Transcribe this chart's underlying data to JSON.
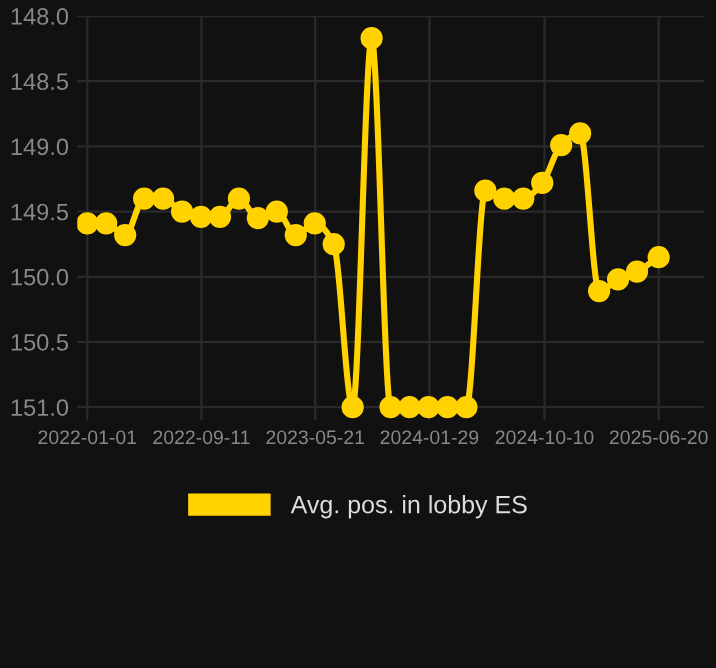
{
  "chart_data": {
    "type": "line",
    "x": [
      "2022-01-01",
      "2022-02-12",
      "2022-03-26",
      "2022-05-07",
      "2022-06-18",
      "2022-07-30",
      "2022-09-10",
      "2022-10-22",
      "2022-12-03",
      "2023-01-14",
      "2023-02-25",
      "2023-04-08",
      "2023-05-20",
      "2023-07-01",
      "2023-08-12",
      "2023-09-23",
      "2023-11-04",
      "2023-12-16",
      "2024-01-27",
      "2024-03-09",
      "2024-04-20",
      "2024-06-01",
      "2024-07-13",
      "2024-08-24",
      "2024-10-05",
      "2024-11-16",
      "2024-12-28",
      "2025-02-08",
      "2025-03-22",
      "2025-05-03",
      "2025-06-20"
    ],
    "series": [
      {
        "name": "Avg. pos. in lobby ES",
        "color": "#ffd200",
        "values": [
          149.59,
          149.59,
          149.68,
          149.4,
          149.4,
          149.5,
          149.54,
          149.54,
          149.4,
          149.55,
          149.5,
          149.68,
          149.59,
          149.75,
          151.0,
          148.17,
          151.0,
          151.0,
          151.0,
          151.0,
          151.0,
          149.34,
          149.4,
          149.4,
          149.28,
          148.99,
          148.9,
          150.11,
          150.02,
          149.96,
          149.85
        ]
      }
    ],
    "ylim": [
      151.1,
      148.0
    ],
    "yticks": [
      {
        "value": 148.0,
        "label": "148.0"
      },
      {
        "value": 148.5,
        "label": "148.5"
      },
      {
        "value": 149.0,
        "label": "149.0"
      },
      {
        "value": 149.5,
        "label": "149.5"
      },
      {
        "value": 150.0,
        "label": "150.0"
      },
      {
        "value": 150.5,
        "label": "150.5"
      },
      {
        "value": 151.0,
        "label": "151.0"
      }
    ],
    "xlim": [
      "2021-12-10",
      "2025-09-28"
    ],
    "xticks": [
      "2022-01-01",
      "2022-09-11",
      "2023-05-21",
      "2024-01-29",
      "2024-10-10",
      "2025-06-20"
    ],
    "grid": true,
    "legend": "bottom",
    "marker": "circle",
    "line_style": "solid"
  }
}
